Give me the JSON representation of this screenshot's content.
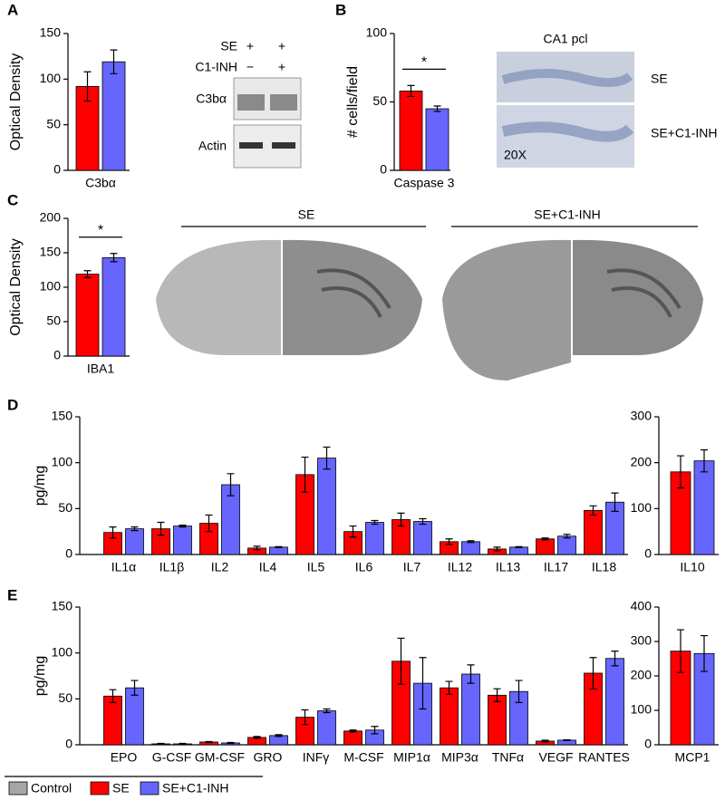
{
  "chart_data": [
    {
      "type": "bar",
      "panel": "A",
      "ylabel": "Optical Density",
      "categories": [
        "C3bα"
      ],
      "series": [
        {
          "color": "#ff0000",
          "values": [
            92
          ],
          "errors": [
            16
          ]
        },
        {
          "color": "#6666ff",
          "values": [
            119
          ],
          "errors": [
            13
          ]
        }
      ],
      "ylim": [
        0,
        150
      ],
      "yticks": [
        0,
        50,
        100,
        150
      ]
    },
    {
      "type": "bar",
      "panel": "B",
      "ylabel": "# cells/field",
      "categories": [
        "Caspase 3"
      ],
      "series": [
        {
          "color": "#ff0000",
          "values": [
            58
          ],
          "errors": [
            4
          ]
        },
        {
          "color": "#6666ff",
          "values": [
            45
          ],
          "errors": [
            2
          ]
        }
      ],
      "ylim": [
        0,
        100
      ],
      "yticks": [
        0,
        50,
        100
      ],
      "annotation": "*"
    },
    {
      "type": "bar",
      "panel": "C",
      "ylabel": "Optical Density",
      "categories": [
        "IBA1"
      ],
      "series": [
        {
          "color": "#ff0000",
          "values": [
            119
          ],
          "errors": [
            5
          ]
        },
        {
          "color": "#6666ff",
          "values": [
            143
          ],
          "errors": [
            6
          ]
        }
      ],
      "ylim": [
        0,
        200
      ],
      "yticks": [
        0,
        50,
        100,
        150,
        200
      ],
      "annotation": "*"
    },
    {
      "type": "bar",
      "panel": "D",
      "ylabel": "pg/mg",
      "categories": [
        "IL1α",
        "IL1β",
        "IL2",
        "IL4",
        "IL5",
        "IL6",
        "IL7",
        "IL12",
        "IL13",
        "IL17",
        "IL18"
      ],
      "series": [
        {
          "color": "#ff0000",
          "values": [
            24,
            28,
            34,
            7,
            87,
            25,
            38,
            14,
            6,
            17,
            48
          ],
          "errors": [
            6,
            7,
            9,
            2,
            19,
            6,
            7,
            3,
            2,
            1,
            5
          ]
        },
        {
          "color": "#6666ff",
          "values": [
            28,
            31,
            76,
            8,
            105,
            35,
            36,
            14,
            8,
            20,
            57
          ],
          "errors": [
            2,
            1,
            12,
            0.5,
            12,
            2,
            3,
            1,
            0.5,
            2,
            10
          ]
        }
      ],
      "ylim": [
        0,
        150
      ],
      "yticks": [
        0,
        50,
        100,
        150
      ]
    },
    {
      "type": "bar",
      "categories": [
        "IL10"
      ],
      "series": [
        {
          "color": "#ff0000",
          "values": [
            180
          ],
          "errors": [
            35
          ]
        },
        {
          "color": "#6666ff",
          "values": [
            204
          ],
          "errors": [
            24
          ]
        }
      ],
      "ylim": [
        0,
        300
      ],
      "yticks": [
        0,
        100,
        200,
        300
      ]
    },
    {
      "type": "bar",
      "panel": "E",
      "ylabel": "pg/mg",
      "categories": [
        "EPO",
        "G-CSF",
        "GM-CSF",
        "GRO",
        "INFγ",
        "M-CSF",
        "MIP1α",
        "MIP3α",
        "TNFα",
        "VEGF",
        "RANTES"
      ],
      "series": [
        {
          "color": "#ff0000",
          "values": [
            53,
            1,
            3,
            8,
            30,
            15,
            91,
            62,
            54,
            4,
            78
          ],
          "errors": [
            7,
            0.5,
            0.5,
            1,
            8,
            1,
            25,
            7,
            7,
            1,
            17
          ]
        },
        {
          "color": "#6666ff",
          "values": [
            62,
            1,
            2,
            10,
            37,
            16,
            67,
            77,
            58,
            5,
            94
          ],
          "errors": [
            8,
            0.5,
            0.5,
            1,
            2,
            4,
            28,
            10,
            12,
            0.5,
            8
          ]
        }
      ],
      "ylim": [
        0,
        150
      ],
      "yticks": [
        0,
        50,
        100,
        150
      ]
    },
    {
      "type": "bar",
      "categories": [
        "MCP1"
      ],
      "series": [
        {
          "color": "#ff0000",
          "values": [
            272
          ],
          "errors": [
            62
          ]
        },
        {
          "color": "#6666ff",
          "values": [
            265
          ],
          "errors": [
            52
          ]
        }
      ],
      "ylim": [
        0,
        400
      ],
      "yticks": [
        0,
        100,
        200,
        300,
        400
      ]
    }
  ],
  "legend": [
    {
      "name": "Control",
      "color": "#a6a6a6"
    },
    {
      "name": "SE",
      "color": "#ff0000"
    },
    {
      "name": "SE+C1-INH",
      "color": "#6666ff"
    }
  ],
  "blot": {
    "conditions": [
      "SE",
      "C1-INH"
    ],
    "lane1": [
      "+",
      "−"
    ],
    "lane2": [
      "+",
      "+"
    ],
    "bands": [
      "C3bα",
      "Actin"
    ]
  },
  "micrographs": {
    "title": "CA1 pcl",
    "rows": [
      "SE",
      "SE+C1-INH"
    ],
    "magnification": "20X"
  },
  "brain_sections": {
    "groups": [
      "SE",
      "SE+C1-INH"
    ]
  }
}
